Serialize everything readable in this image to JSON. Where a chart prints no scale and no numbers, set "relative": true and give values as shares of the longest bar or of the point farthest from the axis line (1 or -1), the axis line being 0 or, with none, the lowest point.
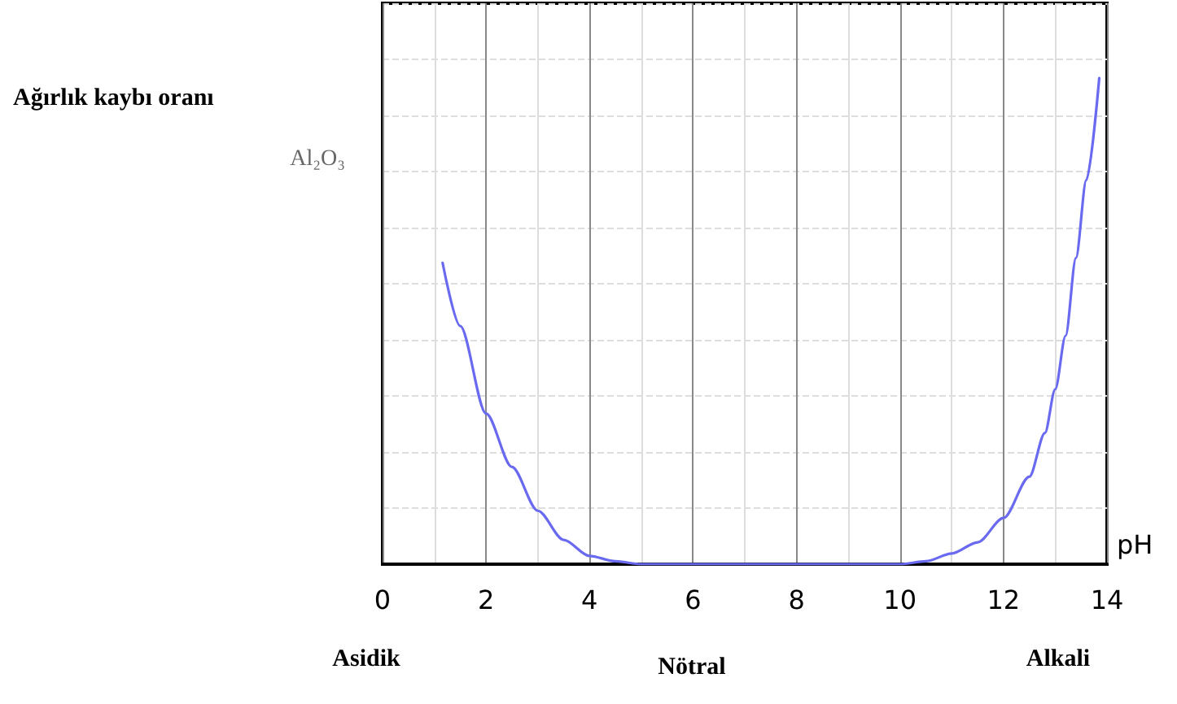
{
  "chart_data": {
    "type": "line",
    "relative": true,
    "xlabel": "pH",
    "annotations": [
      "Ağırlık kaybı oranı",
      "Al₂O₃",
      "Asidik",
      "Nötral",
      "Alkali"
    ],
    "xlim": [
      0,
      14
    ],
    "xticks": [
      0,
      2,
      4,
      6,
      8,
      10,
      12,
      14
    ],
    "grid": true,
    "marker": "none",
    "line_style": "solid",
    "series": [
      {
        "color": "#6a6af0",
        "x": [
          1.16,
          1.5,
          2,
          2.5,
          3,
          3.5,
          4,
          4.5,
          5,
          6,
          7,
          8,
          9,
          10,
          10.5,
          11,
          11.5,
          12,
          12.5,
          12.8,
          13,
          13.2,
          13.4,
          13.6,
          13.85
        ],
        "values": [
          0.62,
          0.49,
          0.31,
          0.2,
          0.11,
          0.05,
          0.017,
          0.006,
          0,
          0,
          0,
          0,
          0,
          0,
          0.006,
          0.022,
          0.045,
          0.095,
          0.18,
          0.27,
          0.36,
          0.47,
          0.63,
          0.79,
          1.0
        ]
      }
    ]
  }
}
